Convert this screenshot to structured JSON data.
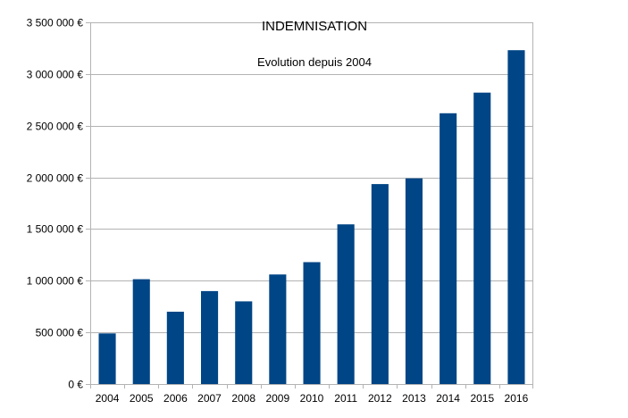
{
  "chart_data": {
    "type": "bar",
    "title": "INDEMNISATION",
    "subtitle": "Evolution depuis 2004",
    "categories": [
      "2004",
      "2005",
      "2006",
      "2007",
      "2008",
      "2009",
      "2010",
      "2011",
      "2012",
      "2013",
      "2014",
      "2015",
      "2016"
    ],
    "values": [
      490000,
      1015000,
      700000,
      900000,
      800000,
      1060000,
      1180000,
      1545000,
      1935000,
      1990000,
      2620000,
      2820000,
      3230000
    ],
    "ylim": [
      0,
      3500000
    ],
    "y_ticks": [
      0,
      500000,
      1000000,
      1500000,
      2000000,
      2500000,
      3000000,
      3500000
    ],
    "y_tick_labels": [
      "0 €",
      "500 000 €",
      "1 000 000 €",
      "1 500 000 €",
      "2 000 000 €",
      "2 500 000 €",
      "3 000 000 €",
      "3 500 000 €"
    ],
    "xlabel": "",
    "ylabel": "",
    "grid": true,
    "legend": "none",
    "bar_color": "#004586",
    "grid_color": "#b3b3b3"
  }
}
